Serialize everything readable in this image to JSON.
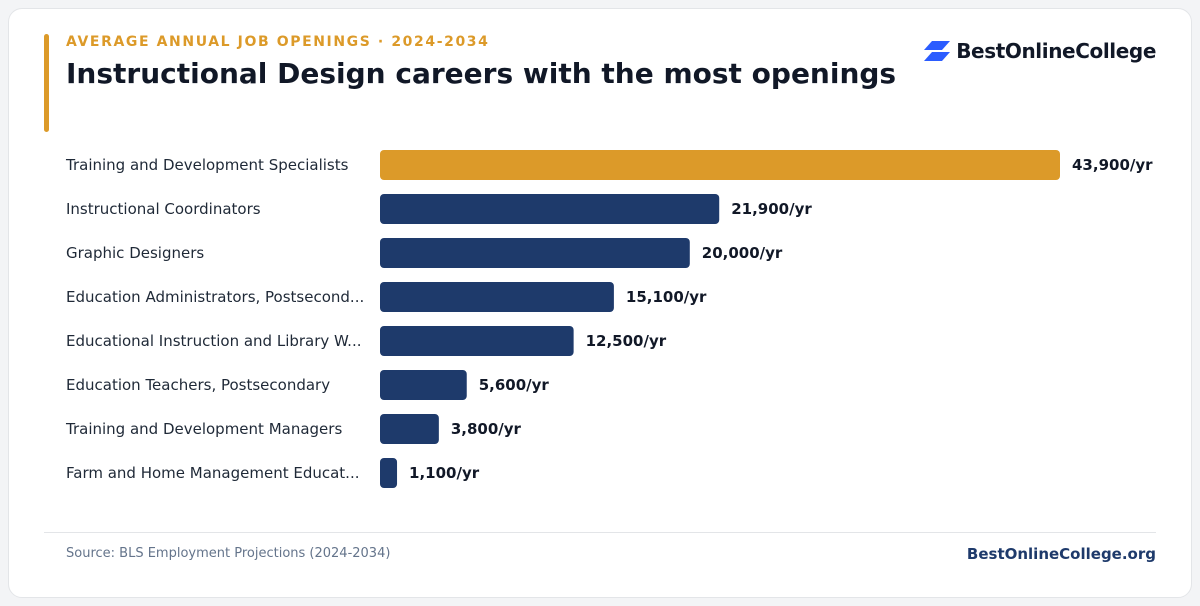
{
  "header": {
    "eyebrow": "AVERAGE ANNUAL JOB OPENINGS · 2024-2034",
    "title": "Instructional Design careers with the most openings"
  },
  "brand": {
    "logo_text": "BestOnlineCollege",
    "logo_icon": "parallelogram-stack-icon",
    "site": "BestOnlineCollege.org"
  },
  "footer": {
    "source": "Source: BLS Employment Projections (2024-2034)"
  },
  "colors": {
    "accent": "#dc9a29",
    "bar": "#1e3a6b",
    "title": "#111827",
    "eyebrow": "#dc9a29",
    "label": "#1f2937",
    "muted": "#64748b",
    "brand": "#1e3a6b",
    "logo_icon": "#2b5cff"
  },
  "chart_data": {
    "type": "bar",
    "orientation": "horizontal",
    "title": "Instructional Design careers with the most openings",
    "xlabel": "",
    "ylabel": "",
    "grid": false,
    "categories": [
      "Training and Development Specialists",
      "Instructional Coordinators",
      "Graphic Designers",
      "Education Administrators, Postsecond...",
      "Educational Instruction and Library W...",
      "Education Teachers, Postsecondary",
      "Training and Development Managers",
      "Farm and Home Management Educat..."
    ],
    "values": [
      43900,
      21900,
      20000,
      15100,
      12500,
      5600,
      3800,
      1100
    ],
    "value_labels": [
      "43,900/yr",
      "21,900/yr",
      "20,000/yr",
      "15,100/yr",
      "12,500/yr",
      "5,600/yr",
      "3,800/yr",
      "1,100/yr"
    ],
    "highlight_index": 0,
    "xlim": [
      0,
      43900
    ]
  }
}
